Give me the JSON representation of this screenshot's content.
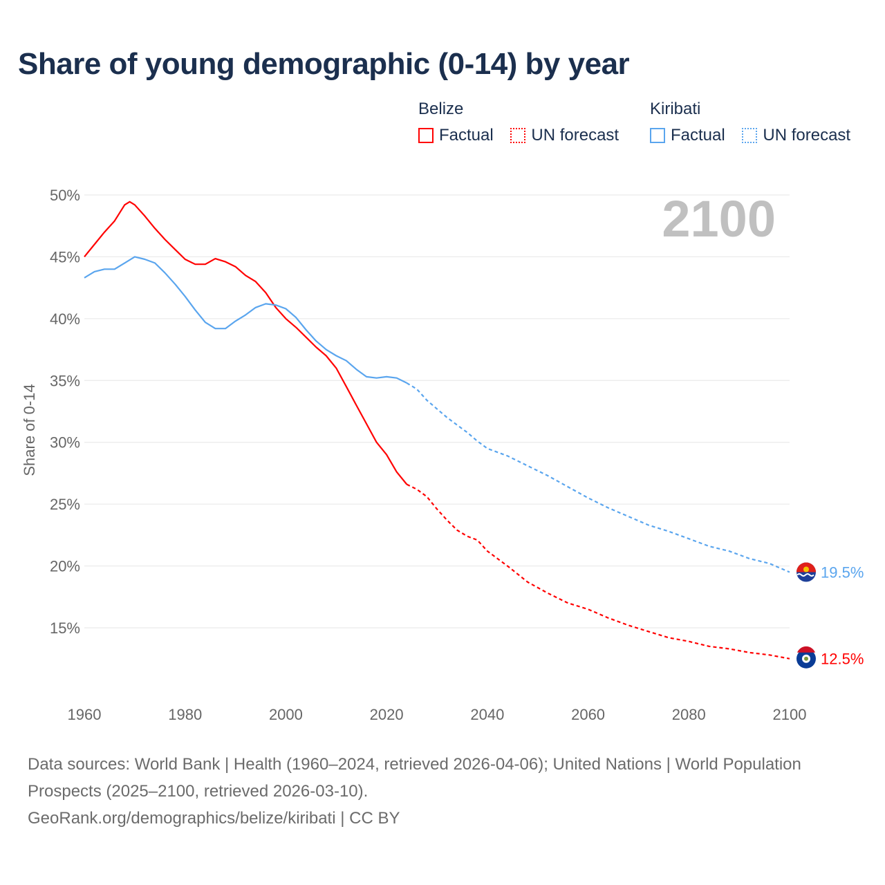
{
  "title": "Share of young demographic (0-14) by year",
  "legend": [
    {
      "country": "Belize",
      "color": "#ff0000",
      "factual_label": "Factual",
      "forecast_label": "UN forecast"
    },
    {
      "country": "Kiribati",
      "color": "#5aa5ee",
      "factual_label": "Factual",
      "forecast_label": "UN forecast"
    }
  ],
  "year_display": "2100",
  "footer": {
    "sources": "Data sources: World Bank | Health (1960–2024, retrieved 2026-04-06); United Nations | World Population Prospects (2025–2100, retrieved 2026-03-10).",
    "credit": "GeoRank.org/demographics/belize/kiribati | CC BY"
  },
  "chart_data": {
    "type": "line",
    "title": "Share of young demographic (0-14) by year",
    "xlabel": "",
    "ylabel": "Share of 0-14",
    "xlim": [
      1960,
      2100
    ],
    "ylim": [
      10,
      50
    ],
    "x_ticks": [
      "1960",
      "1980",
      "2000",
      "2020",
      "2040",
      "2060",
      "2080",
      "2100"
    ],
    "y_ticks": [
      "50%",
      "45%",
      "40%",
      "35%",
      "30%",
      "25%",
      "20%",
      "15%"
    ],
    "y_tick_values": [
      50,
      45,
      40,
      35,
      30,
      25,
      20,
      15
    ],
    "x_tick_values": [
      1960,
      1980,
      2000,
      2020,
      2040,
      2060,
      2080,
      2100
    ],
    "grid": true,
    "legend_position": "top-right",
    "factual_end_year": 2024,
    "series": [
      {
        "name": "Belize",
        "color": "#ff0000",
        "end_label": "12.5%",
        "x": [
          1960,
          1962,
          1964,
          1966,
          1968,
          1969,
          1970,
          1972,
          1974,
          1976,
          1978,
          1980,
          1982,
          1984,
          1986,
          1988,
          1990,
          1992,
          1994,
          1996,
          1998,
          2000,
          2002,
          2004,
          2006,
          2008,
          2010,
          2012,
          2014,
          2016,
          2018,
          2020,
          2022,
          2024,
          2026,
          2028,
          2030,
          2032,
          2034,
          2036,
          2038,
          2040,
          2044,
          2048,
          2052,
          2056,
          2060,
          2064,
          2068,
          2072,
          2076,
          2080,
          2084,
          2088,
          2092,
          2096,
          2100
        ],
        "values": [
          45.0,
          46.0,
          47.0,
          47.9,
          49.2,
          49.45,
          49.2,
          48.3,
          47.3,
          46.4,
          45.6,
          44.8,
          44.4,
          44.4,
          44.85,
          44.6,
          44.2,
          43.5,
          43.0,
          42.1,
          40.9,
          40.0,
          39.3,
          38.5,
          37.7,
          37.0,
          36.0,
          34.5,
          33.0,
          31.5,
          30.0,
          29.0,
          27.6,
          26.6,
          26.2,
          25.6,
          24.6,
          23.7,
          22.9,
          22.4,
          22.1,
          21.2,
          20.0,
          18.7,
          17.8,
          17.0,
          16.5,
          15.8,
          15.2,
          14.7,
          14.2,
          13.9,
          13.5,
          13.3,
          13.0,
          12.8,
          12.5
        ]
      },
      {
        "name": "Kiribati",
        "color": "#5aa5ee",
        "end_label": "19.5%",
        "x": [
          1960,
          1962,
          1964,
          1966,
          1968,
          1970,
          1972,
          1974,
          1976,
          1978,
          1980,
          1982,
          1984,
          1986,
          1988,
          1990,
          1992,
          1994,
          1996,
          1998,
          2000,
          2002,
          2004,
          2006,
          2008,
          2010,
          2012,
          2014,
          2016,
          2018,
          2020,
          2022,
          2024,
          2026,
          2028,
          2030,
          2032,
          2034,
          2036,
          2038,
          2040,
          2044,
          2048,
          2052,
          2056,
          2060,
          2064,
          2068,
          2072,
          2076,
          2080,
          2084,
          2088,
          2092,
          2096,
          2100
        ],
        "values": [
          43.3,
          43.8,
          44.0,
          44.0,
          44.5,
          45.0,
          44.8,
          44.5,
          43.7,
          42.8,
          41.8,
          40.7,
          39.7,
          39.2,
          39.2,
          39.8,
          40.3,
          40.9,
          41.2,
          41.1,
          40.8,
          40.1,
          39.1,
          38.2,
          37.5,
          37.0,
          36.6,
          35.9,
          35.3,
          35.2,
          35.3,
          35.2,
          34.8,
          34.3,
          33.4,
          32.7,
          32.0,
          31.4,
          30.8,
          30.1,
          29.5,
          28.9,
          28.1,
          27.3,
          26.4,
          25.5,
          24.7,
          24.0,
          23.3,
          22.8,
          22.2,
          21.6,
          21.2,
          20.6,
          20.2,
          19.5
        ]
      }
    ]
  }
}
